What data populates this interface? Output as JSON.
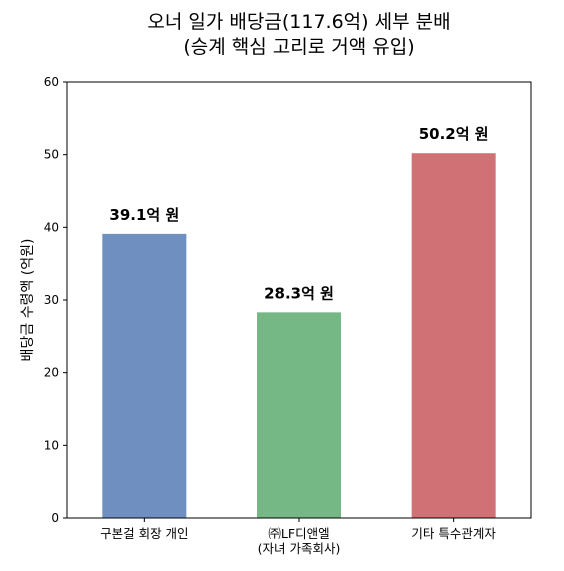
{
  "chart_data": {
    "type": "bar",
    "title": [
      "오너 일가 배당금(117.6억) 세부 분배",
      "(승계 핵심 고리로 거액 유입)"
    ],
    "categories": [
      [
        "구본걸 회장 개인"
      ],
      [
        "㈜LF디앤엘",
        "(자녀 가족회사)"
      ],
      [
        "기타 특수관계자"
      ]
    ],
    "values": [
      39.1,
      28.3,
      50.2
    ],
    "data_labels": [
      "39.1억 원",
      "28.3억 원",
      "50.2억 원"
    ],
    "colors": [
      "#6f8fc0",
      "#75b886",
      "#d07176"
    ],
    "xlabel": "",
    "ylabel": "배당금 수령액 (억원)",
    "ylim": [
      0,
      60
    ],
    "yticks": [
      0,
      10,
      20,
      30,
      40,
      50,
      60
    ],
    "grid": false,
    "legend": "none"
  }
}
